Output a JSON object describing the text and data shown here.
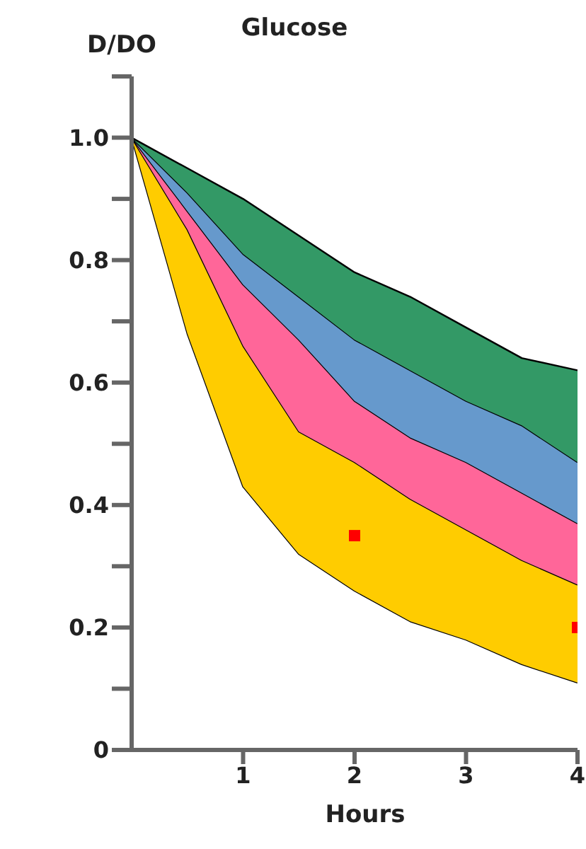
{
  "chart_data": {
    "type": "area",
    "stacked": true,
    "title": "Glucose",
    "xlabel": "Hours",
    "ylabel": "D/DO",
    "x": [
      0,
      0.5,
      1,
      1.5,
      2,
      2.5,
      3,
      3.5,
      4
    ],
    "series": [
      {
        "color": "#ffffff",
        "values": [
          1,
          0.68,
          0.43,
          0.32,
          0.26,
          0.21,
          0.18,
          0.14,
          0.11
        ]
      },
      {
        "color": "#ffcc00",
        "values": [
          0,
          0.17,
          0.23,
          0.2,
          0.21,
          0.2,
          0.18,
          0.17,
          0.16
        ]
      },
      {
        "color": "#ff6699",
        "values": [
          0,
          0.03,
          0.1,
          0.15,
          0.1,
          0.1,
          0.11,
          0.11,
          0.1
        ]
      },
      {
        "color": "#6699cc",
        "values": [
          0,
          0.03,
          0.05,
          0.07,
          0.1,
          0.11,
          0.1,
          0.11,
          0.1
        ]
      },
      {
        "color": "#339966",
        "values": [
          0,
          0.04,
          0.09,
          0.1,
          0.11,
          0.12,
          0.12,
          0.11,
          0.15
        ]
      },
      {
        "type": "scatter",
        "color": "#ff0000",
        "marker": "square",
        "x": [
          2,
          4
        ],
        "values": [
          0.35,
          0.2
        ]
      }
    ],
    "xlim": [
      0,
      4
    ],
    "xticks": [
      1,
      2,
      3,
      4
    ],
    "ylim": [
      0,
      1.1
    ],
    "yticks": [
      0,
      {
        "value": 0.1,
        "label": null
      },
      0.2,
      {
        "value": 0.3,
        "label": null
      },
      0.4,
      {
        "value": 0.5,
        "label": null
      },
      0.6,
      {
        "value": 0.7,
        "label": null
      },
      0.8,
      {
        "value": 0.9,
        "label": null
      },
      {
        "value": 1,
        "label": "1.0"
      },
      {
        "value": 1.1,
        "label": null
      }
    ],
    "grid": false,
    "legend": false
  }
}
